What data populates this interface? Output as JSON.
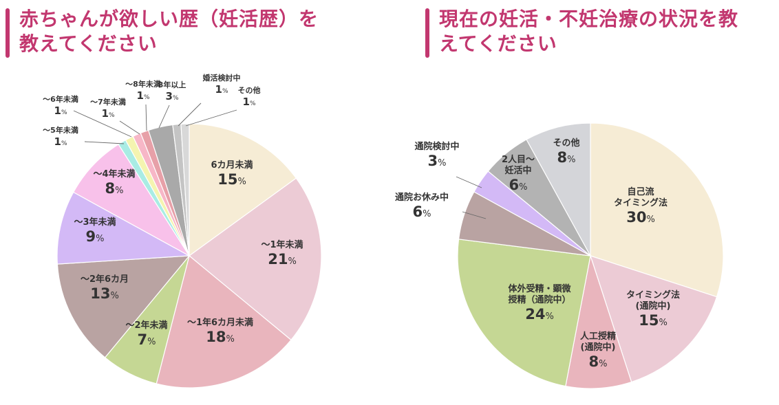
{
  "colors": {
    "accent": "#c2376f",
    "title_bar": "#c2376f",
    "text": "#333333",
    "leader": "#666666"
  },
  "left": {
    "title_line1": "赤ちゃんが欲しい歴（妊活歴）を",
    "title_line2": "教えてください"
  },
  "right": {
    "title_line1": "現在の妊活・不妊治療の状況を教",
    "title_line2": "えてください"
  },
  "pct_unit": "%",
  "chart_data": [
    {
      "type": "pie",
      "title": "赤ちゃんが欲しい歴（妊活歴）を教えてください",
      "unit": "%",
      "start_angle_deg": 0,
      "direction": "clockwise",
      "slices": [
        {
          "label": "6カ月未満",
          "value": 15,
          "color": "#f6ecd5"
        },
        {
          "label": "〜1年未満",
          "value": 21,
          "color": "#eccbd5"
        },
        {
          "label": "〜1年6カ月未満",
          "value": 18,
          "color": "#e9b5bd"
        },
        {
          "label": "〜2年未満",
          "value": 7,
          "color": "#c5d794"
        },
        {
          "label": "〜2年6カ月",
          "value": 13,
          "color": "#b9a3a2"
        },
        {
          "label": "〜3年未満",
          "value": 9,
          "color": "#d3b9f6"
        },
        {
          "label": "〜4年未満",
          "value": 8,
          "color": "#f8c1ea"
        },
        {
          "label": "〜5年未満",
          "value": 1,
          "color": "#a9ece4"
        },
        {
          "label": "〜6年未満",
          "value": 1,
          "color": "#f4f4b0"
        },
        {
          "label": "〜7年未満",
          "value": 1,
          "color": "#f7b7c7"
        },
        {
          "label": "〜8年未満",
          "value": 1,
          "color": "#e7a0a8"
        },
        {
          "label": "8年以上",
          "value": 3,
          "color": "#a9a9a9"
        },
        {
          "label": "婚活検討中",
          "value": 1,
          "color": "#c4c4c4"
        },
        {
          "label": "その他",
          "value": 1,
          "color": "#d8d8d8"
        }
      ]
    },
    {
      "type": "pie",
      "title": "現在の妊活・不妊治療の状況を教えてください",
      "unit": "%",
      "start_angle_deg": 0,
      "direction": "clockwise",
      "slices": [
        {
          "label": "自己流\nタイミング法",
          "value": 30,
          "color": "#f6ecd5"
        },
        {
          "label": "タイミング法\n(通院中)",
          "value": 15,
          "color": "#eccbd5"
        },
        {
          "label": "人工授精\n(通院中)",
          "value": 8,
          "color": "#e9b5bd"
        },
        {
          "label": "体外受精・顕微\n授精（通院中）",
          "value": 24,
          "color": "#c5d794"
        },
        {
          "label": "通院お休み中",
          "value": 6,
          "color": "#b9a3a2"
        },
        {
          "label": "通院検討中",
          "value": 3,
          "color": "#d3b9f6"
        },
        {
          "label": "2人目〜\n妊活中",
          "value": 6,
          "color": "#b3b3b3"
        },
        {
          "label": "その他",
          "value": 8,
          "color": "#d4d5d9"
        }
      ]
    }
  ]
}
